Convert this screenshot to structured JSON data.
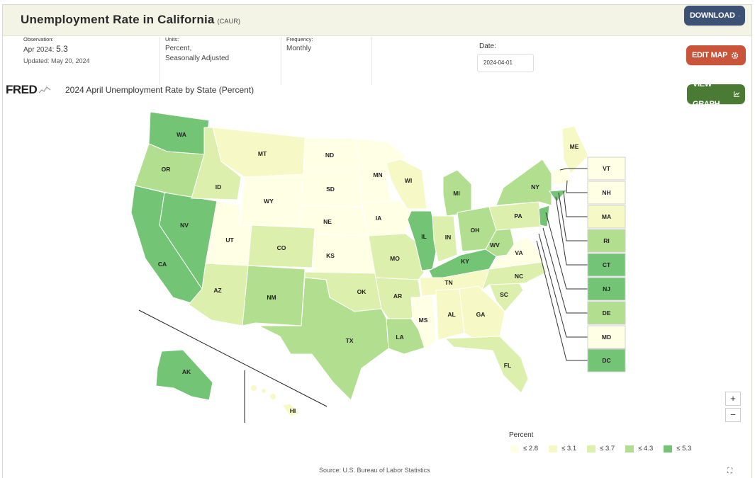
{
  "header": {
    "title": "Unemployment Rate in California",
    "series_code": "(CAUR)",
    "download_label": "DOWNLOAD",
    "edit_map_label": "EDIT MAP",
    "view_graph_label": "VIEW GRAPH"
  },
  "meta": {
    "observation_label": "Observation:",
    "observation_period": "Apr 2024:",
    "observation_value": "5.3",
    "updated": "Updated: May 20, 2024",
    "units_label": "Units:",
    "units_line1": "Percent,",
    "units_line2": "Seasonally Adjusted",
    "frequency_label": "Frequency:",
    "frequency_value": "Monthly",
    "date_label": "Date:",
    "date_value": "2024-04-01"
  },
  "map": {
    "logo": "FRED",
    "title": "2024 April Unemployment Rate by State (Percent)",
    "source": "Source: U.S. Bureau of Labor Statistics",
    "zoom_in": "+",
    "zoom_out": "−"
  },
  "legend": {
    "title": "Percent",
    "bins": [
      {
        "label": "≤ 2.8",
        "color": "#ffffe6"
      },
      {
        "label": "≤ 3.1",
        "color": "#f6f9c6"
      },
      {
        "label": "≤ 3.7",
        "color": "#dcefad"
      },
      {
        "label": "≤ 4.3",
        "color": "#b2de8f"
      },
      {
        "label": "≤ 5.3",
        "color": "#74c476"
      }
    ]
  },
  "states": [
    {
      "abbr": "WA",
      "bin": 4
    },
    {
      "abbr": "OR",
      "bin": 3
    },
    {
      "abbr": "CA",
      "bin": 4
    },
    {
      "abbr": "NV",
      "bin": 4
    },
    {
      "abbr": "ID",
      "bin": 2
    },
    {
      "abbr": "MT",
      "bin": 1
    },
    {
      "abbr": "WY",
      "bin": 0
    },
    {
      "abbr": "UT",
      "bin": 0
    },
    {
      "abbr": "AZ",
      "bin": 2
    },
    {
      "abbr": "CO",
      "bin": 2
    },
    {
      "abbr": "NM",
      "bin": 3
    },
    {
      "abbr": "ND",
      "bin": 0
    },
    {
      "abbr": "SD",
      "bin": 0
    },
    {
      "abbr": "NE",
      "bin": 0
    },
    {
      "abbr": "KS",
      "bin": 0
    },
    {
      "abbr": "OK",
      "bin": 2
    },
    {
      "abbr": "TX",
      "bin": 3
    },
    {
      "abbr": "MN",
      "bin": 0
    },
    {
      "abbr": "IA",
      "bin": 0
    },
    {
      "abbr": "MO",
      "bin": 2
    },
    {
      "abbr": "AR",
      "bin": 2
    },
    {
      "abbr": "LA",
      "bin": 3
    },
    {
      "abbr": "WI",
      "bin": 1
    },
    {
      "abbr": "IL",
      "bin": 4
    },
    {
      "abbr": "MI",
      "bin": 3
    },
    {
      "abbr": "IN",
      "bin": 2
    },
    {
      "abbr": "OH",
      "bin": 3
    },
    {
      "abbr": "KY",
      "bin": 4
    },
    {
      "abbr": "TN",
      "bin": 1
    },
    {
      "abbr": "MS",
      "bin": 0
    },
    {
      "abbr": "AL",
      "bin": 1
    },
    {
      "abbr": "GA",
      "bin": 1
    },
    {
      "abbr": "FL",
      "bin": 2
    },
    {
      "abbr": "SC",
      "bin": 2
    },
    {
      "abbr": "NC",
      "bin": 2
    },
    {
      "abbr": "VA",
      "bin": 0
    },
    {
      "abbr": "WV",
      "bin": 3
    },
    {
      "abbr": "PA",
      "bin": 2
    },
    {
      "abbr": "NY",
      "bin": 3
    },
    {
      "abbr": "ME",
      "bin": 1
    },
    {
      "abbr": "AK",
      "bin": 4
    },
    {
      "abbr": "HI",
      "bin": 1
    }
  ],
  "small_states": [
    {
      "abbr": "VT",
      "bin": 0
    },
    {
      "abbr": "NH",
      "bin": 0
    },
    {
      "abbr": "MA",
      "bin": 1
    },
    {
      "abbr": "RI",
      "bin": 3
    },
    {
      "abbr": "CT",
      "bin": 4
    },
    {
      "abbr": "NJ",
      "bin": 4
    },
    {
      "abbr": "DE",
      "bin": 3
    },
    {
      "abbr": "MD",
      "bin": 0
    },
    {
      "abbr": "DC",
      "bin": 4
    }
  ]
}
